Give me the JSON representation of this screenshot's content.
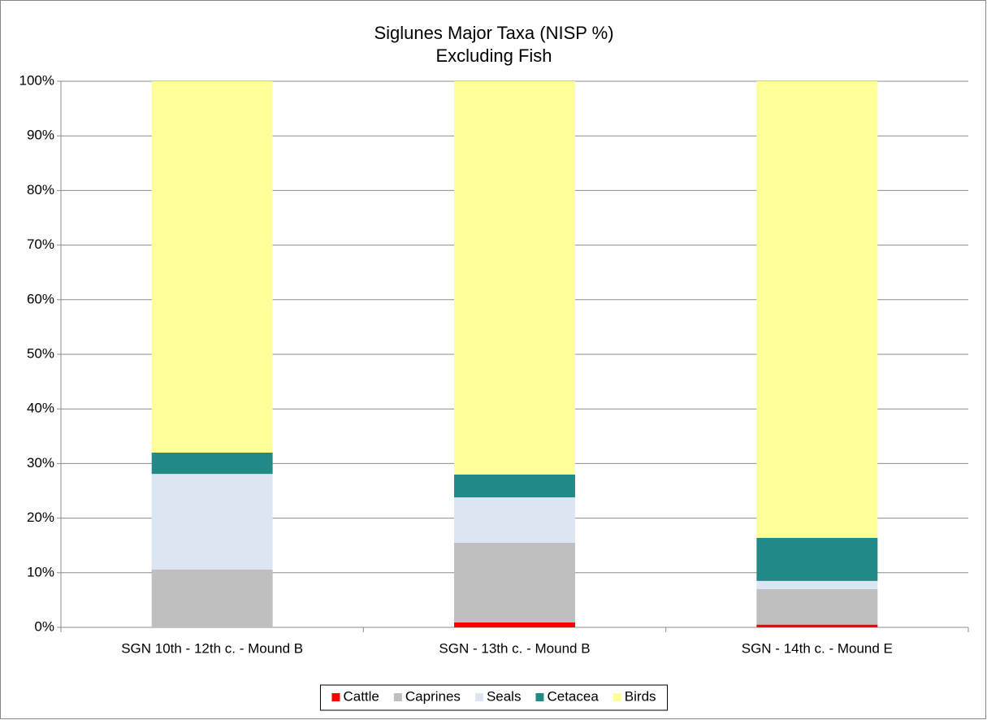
{
  "chart_data": {
    "type": "stacked_bar",
    "title": "Siglunes Major Taxa (NISP %)",
    "subtitle": "Excluding Fish",
    "categories": [
      "SGN 10th - 12th c. -  Mound B",
      "SGN - 13th c. - Mound B",
      "SGN - 14th c. - Mound E"
    ],
    "series": [
      {
        "name": "Cattle",
        "color": "#ff0000",
        "values": [
          0,
          0.9,
          0.5
        ]
      },
      {
        "name": "Caprines",
        "color": "#bfbfbf",
        "values": [
          10.6,
          14.6,
          6.5
        ]
      },
      {
        "name": "Seals",
        "color": "#dce6f2",
        "values": [
          17.5,
          8.3,
          1.5
        ]
      },
      {
        "name": "Cetacea",
        "color": "#218a87",
        "values": [
          3.9,
          4.2,
          7.9
        ]
      },
      {
        "name": "Birds",
        "color": "#ffff99",
        "values": [
          68.0,
          72.0,
          83.6
        ]
      }
    ],
    "ylim": [
      0,
      100
    ],
    "yticks": [
      {
        "value": 0,
        "label": "0%"
      },
      {
        "value": 10,
        "label": "10%"
      },
      {
        "value": 20,
        "label": "20%"
      },
      {
        "value": 30,
        "label": "30%"
      },
      {
        "value": 40,
        "label": "40%"
      },
      {
        "value": 50,
        "label": "50%"
      },
      {
        "value": 60,
        "label": "60%"
      },
      {
        "value": 70,
        "label": "70%"
      },
      {
        "value": 80,
        "label": "80%"
      },
      {
        "value": 90,
        "label": "90%"
      },
      {
        "value": 100,
        "label": "100%"
      }
    ],
    "grid": true,
    "legend": "bottom"
  }
}
